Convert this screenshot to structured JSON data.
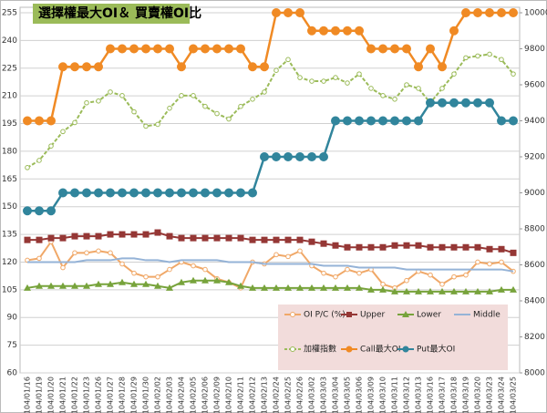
{
  "chart_data": {
    "type": "line",
    "title": "選擇權最大OI＆ 買賣權OI比",
    "categories": [
      "104/01/16",
      "104/01/19",
      "104/01/20",
      "104/01/21",
      "104/01/22",
      "104/01/23",
      "104/01/26",
      "104/01/27",
      "104/01/28",
      "104/01/29",
      "104/01/30",
      "104/02/02",
      "104/02/03",
      "104/02/04",
      "104/02/05",
      "104/02/06",
      "104/02/09",
      "104/02/10",
      "104/02/11",
      "104/02/12",
      "104/02/13",
      "104/02/24",
      "104/02/25",
      "104/02/26",
      "104/03/02",
      "104/03/03",
      "104/03/04",
      "104/03/05",
      "104/03/06",
      "104/03/09",
      "104/03/10",
      "104/03/11",
      "104/03/12",
      "104/03/13",
      "104/03/16",
      "104/03/17",
      "104/03/18",
      "104/03/19",
      "104/03/20",
      "104/03/23",
      "104/03/24",
      "104/03/25"
    ],
    "ylim": [
      60,
      255
    ],
    "yticks": [
      60,
      75,
      90,
      105,
      120,
      135,
      150,
      165,
      180,
      195,
      210,
      225,
      240,
      255
    ],
    "y2lim": [
      8000,
      10000
    ],
    "y2ticks": [
      8000,
      8200,
      8400,
      8600,
      8800,
      9000,
      9200,
      9400,
      9600,
      9800,
      10000
    ],
    "grid": true,
    "legend": "bottom-right",
    "series": [
      {
        "name": "OI P/C (%)",
        "color": "#f0a868",
        "marker": "hollow-circle",
        "axis": "y",
        "values": [
          121,
          122,
          131,
          117,
          125,
          125,
          126,
          125,
          119,
          114,
          112,
          112,
          116,
          120,
          118,
          116,
          111,
          109,
          106,
          120,
          119,
          124,
          123,
          126,
          118,
          114,
          112,
          116,
          114,
          116,
          108,
          106,
          110,
          115,
          113,
          108,
          112,
          113,
          120,
          119,
          120,
          115
        ]
      },
      {
        "name": "Upper",
        "color": "#953735",
        "marker": "square",
        "axis": "y",
        "values": [
          132,
          132,
          133,
          133,
          134,
          134,
          134,
          135,
          135,
          135,
          135,
          136,
          134,
          133,
          133,
          133,
          133,
          133,
          133,
          132,
          132,
          132,
          132,
          132,
          131,
          130,
          129,
          128,
          128,
          128,
          128,
          129,
          129,
          129,
          128,
          128,
          128,
          128,
          128,
          127,
          127,
          125
        ]
      },
      {
        "name": "Lower",
        "color": "#77a33b",
        "marker": "triangle",
        "axis": "y",
        "values": [
          106,
          107,
          107,
          107,
          107,
          107,
          108,
          108,
          109,
          108,
          108,
          107,
          106,
          109,
          110,
          110,
          110,
          109,
          107,
          106,
          106,
          106,
          106,
          106,
          106,
          106,
          106,
          106,
          106,
          105,
          105,
          104,
          104,
          104,
          104,
          104,
          104,
          104,
          104,
          104,
          105,
          105
        ]
      },
      {
        "name": "Middle",
        "color": "#95b3d7",
        "marker": "none",
        "axis": "y",
        "values": [
          120,
          120,
          120,
          120,
          120,
          121,
          121,
          121,
          122,
          122,
          121,
          121,
          120,
          121,
          121,
          121,
          121,
          120,
          120,
          120,
          119,
          119,
          119,
          119,
          119,
          118,
          118,
          118,
          117,
          117,
          117,
          117,
          116,
          116,
          116,
          116,
          116,
          116,
          116,
          116,
          116,
          115
        ]
      },
      {
        "name": "加權指數",
        "color": "#9bbb59",
        "marker": "hollow-circle",
        "dashed": true,
        "axis": "y2",
        "values": [
          9140,
          9180,
          9260,
          9340,
          9390,
          9500,
          9510,
          9560,
          9540,
          9450,
          9370,
          9380,
          9470,
          9540,
          9540,
          9480,
          9440,
          9410,
          9480,
          9520,
          9560,
          9680,
          9740,
          9640,
          9620,
          9620,
          9640,
          9610,
          9660,
          9580,
          9540,
          9520,
          9600,
          9580,
          9500,
          9580,
          9660,
          9750,
          9760,
          9770,
          9740,
          9660
        ]
      },
      {
        "name": "Call最大OI",
        "color": "#f08a24",
        "marker": "circle",
        "axis": "y2",
        "values": [
          9400,
          9400,
          9400,
          9700,
          9700,
          9700,
          9700,
          9800,
          9800,
          9800,
          9800,
          9800,
          9800,
          9700,
          9800,
          9800,
          9800,
          9800,
          9800,
          9700,
          9700,
          10000,
          10000,
          10000,
          9900,
          9900,
          9900,
          9900,
          9900,
          9800,
          9800,
          9800,
          9800,
          9700,
          9800,
          9700,
          9900,
          10000,
          10000,
          10000,
          10000,
          10000
        ]
      },
      {
        "name": "Put最大OI",
        "color": "#31859c",
        "marker": "circle",
        "axis": "y2",
        "values": [
          8900,
          8900,
          8900,
          9000,
          9000,
          9000,
          9000,
          9000,
          9000,
          9000,
          9000,
          9000,
          9000,
          9000,
          9000,
          9000,
          9000,
          9000,
          9000,
          9000,
          9200,
          9200,
          9200,
          9200,
          9200,
          9200,
          9400,
          9400,
          9400,
          9400,
          9400,
          9400,
          9400,
          9400,
          9500,
          9500,
          9500,
          9500,
          9500,
          9500,
          9400,
          9400
        ]
      }
    ]
  }
}
